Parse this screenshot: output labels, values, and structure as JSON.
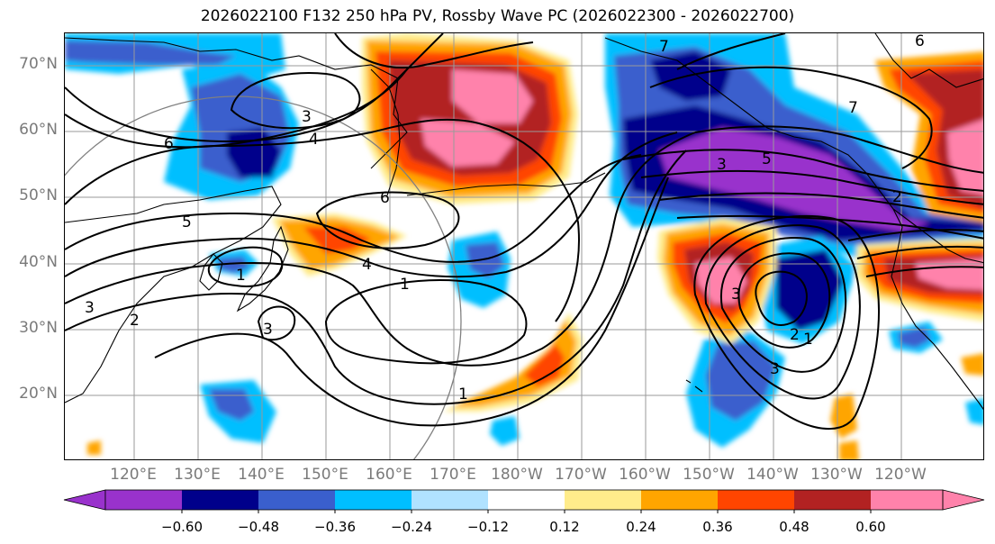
{
  "title": "2026022100 F132 250 hPa PV, Rossby Wave PC (2026022300 - 2026022700)",
  "map": {
    "lat_labels": [
      "70°N",
      "60°N",
      "50°N",
      "40°N",
      "30°N",
      "20°N"
    ],
    "lon_labels": [
      "120°E",
      "130°E",
      "140°E",
      "150°E",
      "160°E",
      "170°E",
      "180°W",
      "170°W",
      "160°W",
      "150°W",
      "140°W",
      "130°W",
      "120°W"
    ],
    "contour_labels": [
      "6",
      "3",
      "4",
      "5",
      "6",
      "4",
      "1",
      "3",
      "5",
      "1",
      "2",
      "3",
      "3",
      "2",
      "1",
      "3",
      "7",
      "2",
      "1",
      "6",
      "7",
      "3"
    ]
  },
  "colorbar": {
    "tick_labels": [
      "−0.60",
      "−0.48",
      "−0.36",
      "−0.24",
      "−0.12",
      "0.12",
      "0.24",
      "0.36",
      "0.48",
      "0.60"
    ],
    "colors": [
      "#9932cc",
      "#00008b",
      "#3a5fcd",
      "#00bfff",
      "#b0e2ff",
      "#ffffff",
      "#ffec8b",
      "#ffa500",
      "#ff4500",
      "#b22222",
      "#ff82ab"
    ]
  }
}
